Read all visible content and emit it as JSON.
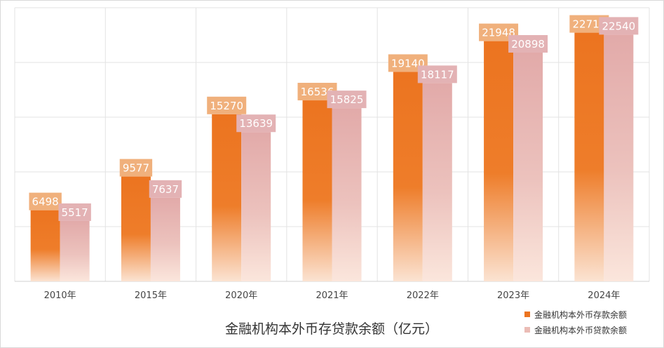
{
  "chart_data": {
    "type": "bar",
    "title": "金融机构本外币存贷款余额（亿元）",
    "xlabel": "",
    "ylabel": "",
    "ylim": [
      0,
      25000
    ],
    "grid": true,
    "legend_position": "bottom-right",
    "categories": [
      "2010年",
      "2015年",
      "2020年",
      "2021年",
      "2022年",
      "2023年",
      "2024年"
    ],
    "series": [
      {
        "name": "金融机构本外币存款余额",
        "values": [
          6498,
          9577,
          15270,
          16536,
          19140,
          21948,
          22719
        ],
        "color": "#ec7420",
        "label_bg": "#f0b07c"
      },
      {
        "name": "金融机构本外币贷款余额",
        "values": [
          5517,
          7637,
          13639,
          15825,
          18117,
          20898,
          22540
        ],
        "color": "#e2aaa9",
        "label_bg": "#e3b2b4"
      }
    ]
  }
}
